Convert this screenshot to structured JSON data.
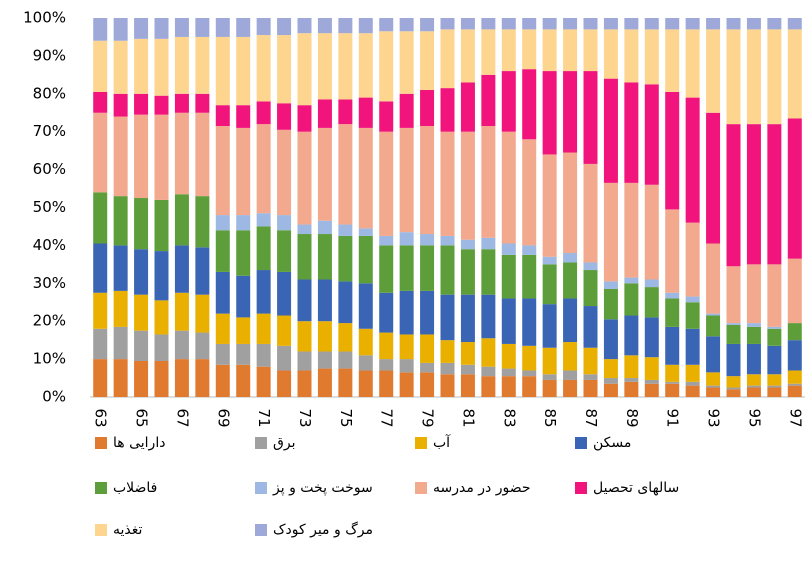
{
  "chart_data": {
    "type": "stacked_bar_percent",
    "categories": [
      "63",
      null,
      "65",
      null,
      "67",
      null,
      "69",
      null,
      "71",
      null,
      "73",
      null,
      "75",
      null,
      "77",
      null,
      "79",
      null,
      "81",
      null,
      "83",
      null,
      "85",
      null,
      "87",
      null,
      "89",
      null,
      "91",
      null,
      "93",
      null,
      "95",
      null,
      "97"
    ],
    "ylim": [
      0,
      100
    ],
    "yticks": [
      {
        "value": 0,
        "label": "0%"
      },
      {
        "value": 10,
        "label": "10%"
      },
      {
        "value": 20,
        "label": "20%"
      },
      {
        "value": 30,
        "label": "30%"
      },
      {
        "value": 40,
        "label": "40%"
      },
      {
        "value": 50,
        "label": "50%"
      },
      {
        "value": 60,
        "label": "60%"
      },
      {
        "value": 70,
        "label": "70%"
      },
      {
        "value": 80,
        "label": "80%"
      },
      {
        "value": 90,
        "label": "90%"
      },
      {
        "value": 100,
        "label": "100%"
      }
    ],
    "grid": false,
    "series": [
      {
        "name": "دارایی ها",
        "color": "#e07a2f",
        "values": [
          10,
          10,
          9.5,
          9.5,
          10,
          10,
          8.5,
          8.5,
          8,
          7,
          7,
          7.5,
          7.5,
          7,
          7,
          6.5,
          6.5,
          6,
          6,
          5.5,
          5.5,
          5.5,
          4.5,
          4.5,
          4.5,
          3.5,
          4,
          3.5,
          3.5,
          3,
          2.5,
          2,
          2.5,
          2.5,
          3
        ]
      },
      {
        "name": "برق",
        "color": "#a0a0a0",
        "values": [
          8,
          8.5,
          8,
          7,
          7.5,
          7,
          5.5,
          5.5,
          6,
          6.5,
          5,
          4.5,
          4.5,
          4,
          3,
          3.5,
          2.5,
          3,
          2.5,
          2.5,
          2,
          1.5,
          1.5,
          2.5,
          1.5,
          1.5,
          1,
          1,
          0.5,
          1,
          0.5,
          0.5,
          0.5,
          0.5,
          0.5
        ]
      },
      {
        "name": "آب",
        "color": "#e9b000",
        "values": [
          9.5,
          9.5,
          9.5,
          9,
          10,
          10,
          8,
          7,
          8,
          8,
          8,
          8,
          7.5,
          7,
          7,
          6.5,
          7.5,
          6,
          6,
          7.5,
          6.5,
          6.5,
          7,
          7.5,
          7,
          5,
          6,
          6,
          4.5,
          4.5,
          3.5,
          3,
          3,
          3,
          3.5
        ]
      },
      {
        "name": "مسکن",
        "color": "#3a65b4",
        "values": [
          13,
          12,
          12,
          13,
          12.5,
          12.5,
          11,
          11,
          11.5,
          11.5,
          11,
          11,
          11,
          12,
          10.5,
          11.5,
          11.5,
          12,
          12.5,
          11.5,
          12,
          12.5,
          11.5,
          11.5,
          11,
          10.5,
          10.5,
          10.5,
          10,
          9.5,
          9.5,
          8.5,
          8,
          7.5,
          8
        ]
      },
      {
        "name": "فاضلاب",
        "color": "#5e9e3a",
        "values": [
          13.5,
          13,
          13.5,
          13.5,
          13.5,
          13.5,
          11,
          12,
          11.5,
          11,
          12,
          12,
          12,
          12.5,
          12.5,
          12,
          12,
          13,
          12,
          12,
          11.5,
          11.5,
          10.5,
          9.5,
          9.5,
          8,
          8.5,
          8,
          7.5,
          7,
          5.5,
          5,
          4.5,
          4.5,
          4.5
        ]
      },
      {
        "name": "سوخت پخت و پز",
        "color": "#9db8e3",
        "values": [
          0,
          0,
          0,
          0,
          0,
          0,
          4,
          4,
          3.5,
          4,
          2.5,
          3.5,
          3,
          2,
          2.5,
          3.5,
          3,
          2.5,
          2.5,
          3,
          3,
          2.5,
          2,
          2.5,
          2,
          2,
          1.5,
          2,
          1.5,
          1.5,
          0.5,
          0.5,
          1,
          0.5,
          0
        ]
      },
      {
        "name": "حضور در مدرسه",
        "color": "#f2a98e",
        "values": [
          21,
          21,
          22,
          22.5,
          21.5,
          22,
          23.5,
          23,
          23.5,
          22.5,
          24.5,
          24.5,
          26.5,
          26.5,
          27.5,
          27.5,
          28.5,
          27.5,
          28.5,
          29.5,
          29.5,
          28,
          27,
          26.5,
          26,
          26,
          25,
          25,
          22,
          19.5,
          18.5,
          15,
          15.5,
          16.5,
          17
        ]
      },
      {
        "name": "سالهای تحصیل",
        "color": "#f0147c",
        "values": [
          5.5,
          6,
          5.5,
          5,
          5,
          5,
          5.5,
          6,
          6,
          7,
          7,
          7.5,
          6.5,
          8,
          8,
          9,
          9.5,
          11.5,
          13,
          13.5,
          16,
          18.5,
          22,
          21.5,
          24.5,
          27.5,
          26.5,
          26.5,
          31,
          33,
          34.5,
          37.5,
          37,
          37,
          37
        ]
      },
      {
        "name": "تغذیه",
        "color": "#fdd58e",
        "values": [
          13.5,
          14,
          14.5,
          15,
          15,
          15,
          18,
          18,
          17.5,
          18,
          19,
          17.5,
          17.5,
          17,
          18.5,
          16.5,
          15.5,
          15.5,
          14,
          12,
          11,
          10.5,
          11,
          11,
          11,
          13,
          14,
          14.5,
          16.5,
          18,
          22,
          25,
          25,
          25,
          23.5
        ]
      },
      {
        "name": "مرگ و میر کودک",
        "color": "#9ea9d9",
        "values": [
          6,
          6,
          5.5,
          5.5,
          5,
          5,
          5,
          5,
          4.5,
          4.5,
          4,
          4,
          4,
          4,
          3.5,
          3.5,
          3.5,
          3,
          3,
          3,
          3,
          3,
          3,
          3,
          3,
          3,
          3,
          3,
          3,
          3,
          3,
          3,
          3,
          3,
          3
        ]
      }
    ]
  }
}
